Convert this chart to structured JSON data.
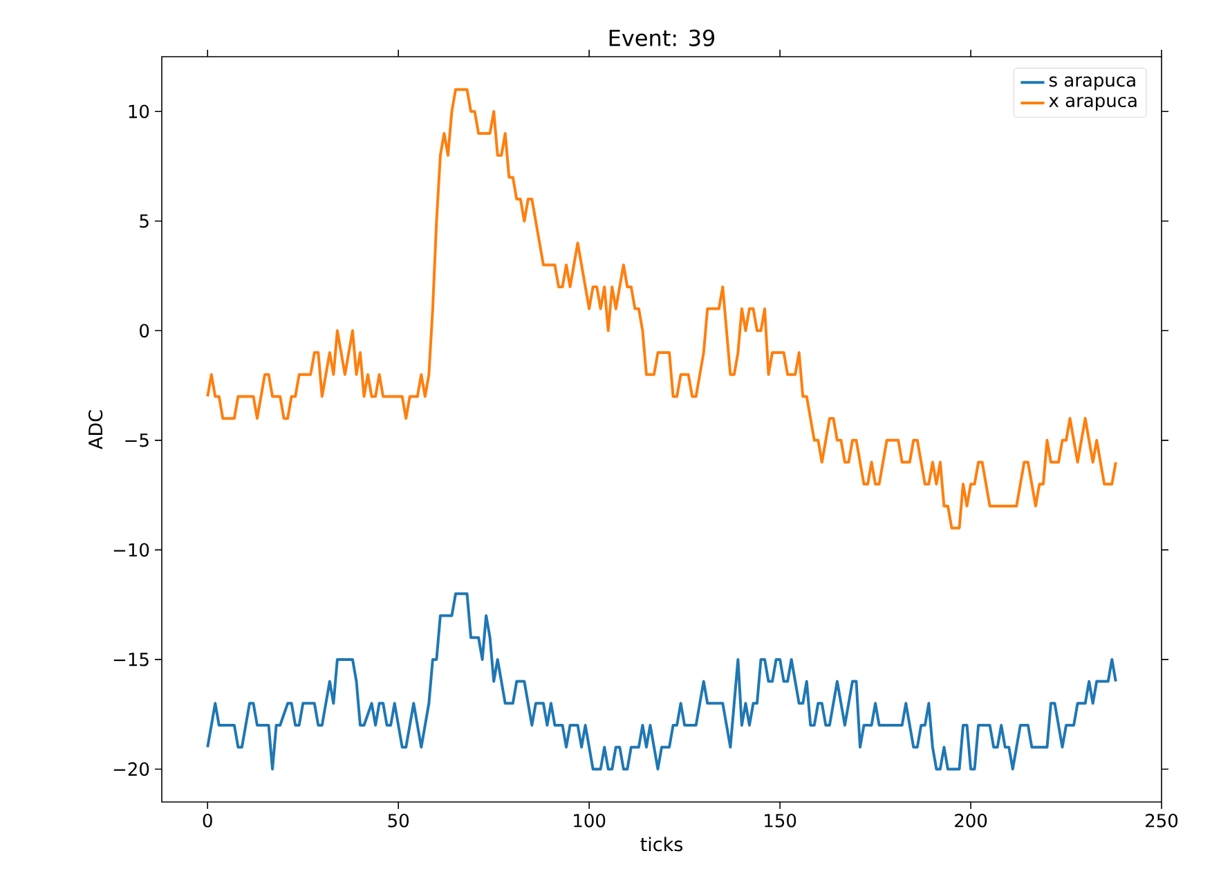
{
  "chart_data": {
    "type": "line",
    "title": "Event: 39",
    "xlabel": "ticks",
    "ylabel": "ADC",
    "xlim": [
      -12,
      250
    ],
    "ylim": [
      -21.5,
      12.5
    ],
    "xticks": [
      0,
      50,
      100,
      150,
      200,
      250
    ],
    "yticks": [
      {
        "value": -20,
        "label": "−20"
      },
      {
        "value": -15,
        "label": "−15"
      },
      {
        "value": -10,
        "label": "−10"
      },
      {
        "value": -5,
        "label": "−5"
      },
      0,
      5,
      10
    ],
    "legend": "top right",
    "series": [
      {
        "name": "s arapuca",
        "color": "#1f77b4",
        "x": [
          0,
          2,
          3,
          7,
          8,
          9,
          11,
          12,
          13,
          16,
          17,
          18,
          19,
          21,
          22,
          23,
          24,
          25,
          28,
          29,
          30,
          32,
          33,
          34,
          38,
          39,
          40,
          41,
          43,
          44,
          45,
          46,
          47,
          48,
          49,
          50,
          51,
          52,
          54,
          56,
          58,
          59,
          60,
          61,
          63,
          64,
          65,
          68,
          69,
          71,
          72,
          73,
          74,
          75,
          76,
          77,
          78,
          80,
          81,
          83,
          84,
          85,
          86,
          88,
          89,
          90,
          91,
          93,
          94,
          95,
          97,
          98,
          99,
          100,
          101,
          103,
          104,
          105,
          106,
          107,
          108,
          109,
          110,
          111,
          113,
          114,
          115,
          116,
          117,
          118,
          119,
          120,
          121,
          122,
          123,
          124,
          125,
          128,
          129,
          130,
          131,
          135,
          136,
          137,
          138,
          139,
          140,
          141,
          142,
          143,
          144,
          145,
          146,
          147,
          148,
          149,
          150,
          151,
          152,
          153,
          154,
          155,
          156,
          157,
          158,
          159,
          160,
          161,
          162,
          163,
          164,
          165,
          166,
          167,
          168,
          169,
          170,
          171,
          172,
          174,
          175,
          176,
          182,
          183,
          184,
          185,
          186,
          187,
          188,
          189,
          190,
          191,
          192,
          193,
          194,
          197,
          198,
          199,
          200,
          201,
          202,
          205,
          206,
          207,
          208,
          209,
          210,
          211,
          212,
          213,
          215,
          216,
          220,
          221,
          222,
          223,
          224,
          225,
          227,
          228,
          230,
          231,
          232,
          233,
          236,
          237,
          238
        ],
        "values": [
          -19,
          -17,
          -18,
          -18,
          -19,
          -19,
          -17,
          -17,
          -18,
          -18,
          -20,
          -18,
          -18,
          -17,
          -17,
          -18,
          -18,
          -17,
          -17,
          -18,
          -18,
          -16,
          -17,
          -15,
          -15,
          -16,
          -18,
          -18,
          -17,
          -18,
          -17,
          -17,
          -18,
          -18,
          -17,
          -18,
          -19,
          -19,
          -17,
          -19,
          -17,
          -15,
          -15,
          -13,
          -13,
          -13,
          -12,
          -12,
          -14,
          -14,
          -15,
          -13,
          -14,
          -16,
          -15,
          -16,
          -17,
          -17,
          -16,
          -16,
          -17,
          -18,
          -17,
          -17,
          -18,
          -17,
          -18,
          -18,
          -19,
          -18,
          -18,
          -19,
          -18,
          -19,
          -20,
          -20,
          -19,
          -20,
          -20,
          -19,
          -19,
          -20,
          -20,
          -19,
          -19,
          -18,
          -19,
          -18,
          -19,
          -20,
          -19,
          -19,
          -19,
          -18,
          -18,
          -17,
          -18,
          -18,
          -17,
          -16,
          -17,
          -17,
          -18,
          -19,
          -17,
          -15,
          -18,
          -17,
          -18,
          -17,
          -17,
          -15,
          -15,
          -16,
          -16,
          -15,
          -15,
          -16,
          -16,
          -15,
          -16,
          -17,
          -17,
          -16,
          -18,
          -18,
          -17,
          -17,
          -18,
          -18,
          -17,
          -16,
          -17,
          -18,
          -17,
          -16,
          -16,
          -19,
          -18,
          -18,
          -17,
          -18,
          -18,
          -17,
          -18,
          -19,
          -19,
          -18,
          -18,
          -17,
          -19,
          -20,
          -20,
          -19,
          -20,
          -20,
          -18,
          -18,
          -20,
          -20,
          -18,
          -18,
          -19,
          -19,
          -18,
          -19,
          -19,
          -20,
          -19,
          -18,
          -18,
          -19,
          -19,
          -17,
          -17,
          -18,
          -19,
          -18,
          -18,
          -17,
          -17,
          -16,
          -17,
          -16,
          -16,
          -15,
          -16
        ]
      },
      {
        "name": "x arapuca",
        "color": "#ff7f0e",
        "x": [
          0,
          1,
          2,
          3,
          4,
          7,
          8,
          12,
          13,
          15,
          16,
          17,
          19,
          20,
          21,
          22,
          23,
          24,
          27,
          28,
          29,
          30,
          32,
          33,
          34,
          36,
          38,
          39,
          40,
          41,
          42,
          43,
          44,
          45,
          46,
          51,
          52,
          53,
          55,
          56,
          57,
          58,
          59,
          60,
          61,
          62,
          63,
          64,
          65,
          68,
          69,
          70,
          71,
          74,
          75,
          76,
          77,
          78,
          79,
          80,
          81,
          82,
          83,
          84,
          85,
          86,
          87,
          88,
          91,
          92,
          93,
          94,
          95,
          96,
          97,
          98,
          99,
          100,
          101,
          102,
          103,
          104,
          105,
          106,
          107,
          108,
          109,
          110,
          111,
          112,
          113,
          114,
          115,
          117,
          118,
          120,
          121,
          122,
          123,
          124,
          126,
          127,
          128,
          129,
          130,
          131,
          133,
          134,
          135,
          137,
          138,
          139,
          140,
          141,
          142,
          143,
          144,
          145,
          146,
          147,
          148,
          151,
          152,
          154,
          155,
          156,
          157,
          158,
          159,
          160,
          161,
          162,
          163,
          164,
          165,
          166,
          167,
          168,
          169,
          170,
          171,
          172,
          173,
          174,
          175,
          176,
          177,
          178,
          181,
          182,
          184,
          185,
          186,
          187,
          188,
          189,
          190,
          191,
          192,
          193,
          194,
          195,
          197,
          198,
          199,
          200,
          201,
          202,
          203,
          204,
          205,
          212,
          213,
          214,
          215,
          216,
          217,
          218,
          219,
          220,
          221,
          223,
          224,
          225,
          226,
          227,
          228,
          229,
          230,
          231,
          232,
          233,
          234,
          235,
          236,
          237,
          238
        ],
        "values": [
          -3,
          -2,
          -3,
          -3,
          -4,
          -4,
          -3,
          -3,
          -4,
          -2,
          -2,
          -3,
          -3,
          -4,
          -4,
          -3,
          -3,
          -2,
          -2,
          -1,
          -1,
          -3,
          -1,
          -2,
          0,
          -2,
          0,
          -2,
          -1,
          -3,
          -2,
          -3,
          -3,
          -2,
          -3,
          -3,
          -4,
          -3,
          -3,
          -2,
          -3,
          -2,
          1,
          5,
          8,
          9,
          8,
          10,
          11,
          11,
          10,
          10,
          9,
          9,
          10,
          8,
          8,
          9,
          7,
          7,
          6,
          6,
          5,
          6,
          6,
          5,
          4,
          3,
          3,
          2,
          2,
          3,
          2,
          3,
          4,
          3,
          2,
          1,
          2,
          2,
          1,
          2,
          0,
          2,
          1,
          2,
          3,
          2,
          2,
          1,
          1,
          0,
          -2,
          -2,
          -1,
          -1,
          -1,
          -3,
          -3,
          -2,
          -2,
          -3,
          -3,
          -2,
          -1,
          1,
          1,
          1,
          2,
          -2,
          -2,
          -1,
          1,
          0,
          1,
          1,
          0,
          0,
          1,
          -2,
          -1,
          -1,
          -2,
          -2,
          -1,
          -3,
          -3,
          -4,
          -5,
          -5,
          -6,
          -5,
          -4,
          -4,
          -5,
          -5,
          -6,
          -6,
          -5,
          -5,
          -6,
          -7,
          -7,
          -6,
          -7,
          -7,
          -6,
          -5,
          -5,
          -6,
          -6,
          -5,
          -5,
          -6,
          -7,
          -7,
          -6,
          -7,
          -6,
          -8,
          -8,
          -9,
          -9,
          -7,
          -8,
          -7,
          -7,
          -6,
          -6,
          -7,
          -8,
          -8,
          -7,
          -6,
          -6,
          -7,
          -8,
          -7,
          -7,
          -5,
          -6,
          -6,
          -5,
          -5,
          -4,
          -5,
          -6,
          -5,
          -4,
          -5,
          -6,
          -5,
          -6,
          -7,
          -7,
          -7,
          -6
        ]
      }
    ]
  }
}
